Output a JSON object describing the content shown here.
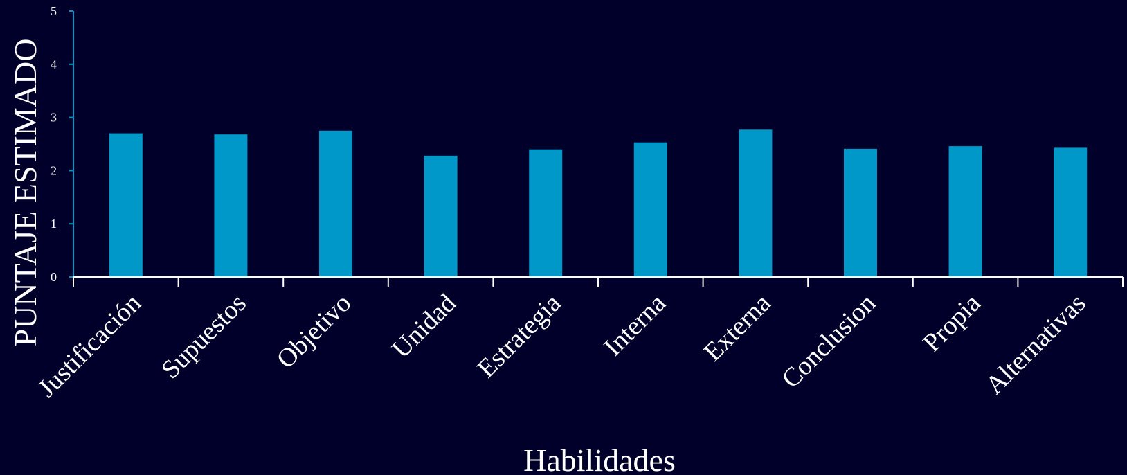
{
  "colors": {
    "background": "#00002a",
    "bar": "#0098c9",
    "y_axis": "#0098c9",
    "x_axis": "#ffffff",
    "text": "#ffffff"
  },
  "chart_data": {
    "type": "bar",
    "categories": [
      "Justificación",
      "Supuestos",
      "Objetivo",
      "Unidad",
      "Estrategia",
      "Interna",
      "Externa",
      "Conclusion",
      "Propia",
      "Alternativas"
    ],
    "values": [
      2.7,
      2.68,
      2.75,
      2.28,
      2.4,
      2.53,
      2.77,
      2.41,
      2.46,
      2.43
    ],
    "xlabel": "Habilidades",
    "ylabel": "PUNTAJE ESTIMADO",
    "ylim": [
      0,
      5
    ],
    "yticks": [
      "0",
      "1",
      "2",
      "3",
      "4",
      "5"
    ],
    "grid": false,
    "legend": "none"
  }
}
